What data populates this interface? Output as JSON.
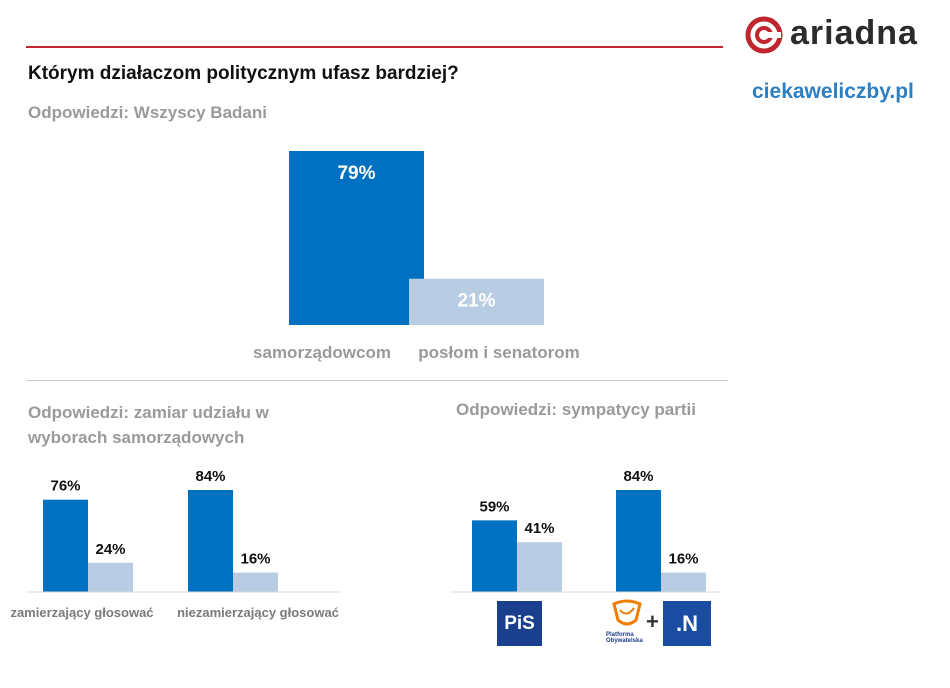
{
  "header": {
    "brand": "ariadna",
    "website": "ciekaweliczby.pl",
    "colors": {
      "accent_red": "#c0262d",
      "brand_blue": "#2d7fc1"
    }
  },
  "title": "Którym działaczom politycznym ufasz bardziej?",
  "subtitle": "Odpowiedzi: Wszyscy Badani",
  "section_turnout": {
    "title": "Odpowiedzi: zamiar udziału w wyborach samorządowych"
  },
  "section_party": {
    "title": "Odpowiedzi: sympatycy partii"
  },
  "party_logos": {
    "pis": "PiS",
    "po": "Platforma Obywatelska",
    "plus": "+",
    "nowoczesna": ".N"
  },
  "series_names": [
    "samorządowcom",
    "posłom i senatorom"
  ],
  "colors": {
    "dark_bar": "#0070c0",
    "light_bar": "#b8cce4"
  },
  "chart_data": [
    {
      "type": "bar",
      "id": "all",
      "categories": [
        "samorządowcom",
        "posłom i senatorom"
      ],
      "values": [
        79,
        21
      ],
      "labels": [
        "79%",
        "21%"
      ],
      "ylim": [
        0,
        100
      ]
    },
    {
      "type": "bar",
      "id": "turnout",
      "groups": [
        {
          "name": "zamierzający głosować",
          "values": [
            76,
            24
          ],
          "labels": [
            "76%",
            "24%"
          ]
        },
        {
          "name": "niezamierzający głosować",
          "values": [
            84,
            16
          ],
          "labels": [
            "84%",
            "16%"
          ]
        }
      ],
      "series": [
        "samorządowcom",
        "posłom i senatorom"
      ],
      "ylim": [
        0,
        100
      ]
    },
    {
      "type": "bar",
      "id": "party",
      "groups": [
        {
          "name": "PiS",
          "values": [
            59,
            41
          ],
          "labels": [
            "59%",
            "41%"
          ]
        },
        {
          "name": "PO + .N",
          "values": [
            84,
            16
          ],
          "labels": [
            "84%",
            "16%"
          ]
        }
      ],
      "series": [
        "samorządowcom",
        "posłom i senatorom"
      ],
      "ylim": [
        0,
        100
      ]
    }
  ]
}
